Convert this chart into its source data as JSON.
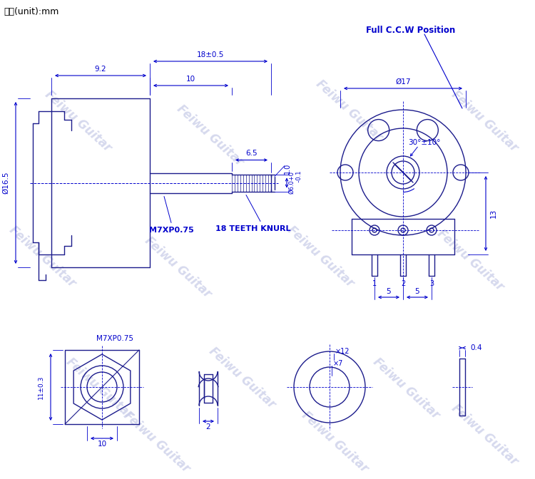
{
  "bg_color": "#ffffff",
  "lc": "#1c1c8c",
  "dc": "#0000cc",
  "wc": "#c8cce8",
  "title": "单位(unit):mm",
  "watermark": "Feiwu Guitar",
  "ccw": "Full C.C.W Position"
}
